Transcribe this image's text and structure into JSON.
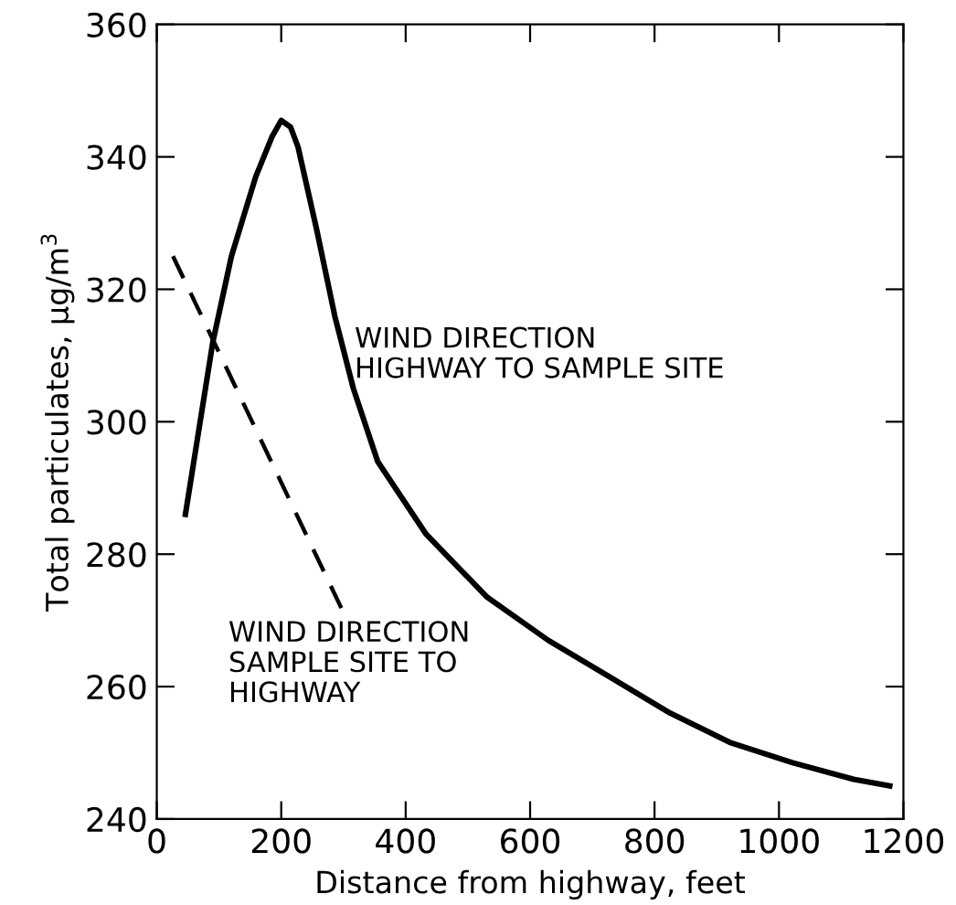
{
  "chart_data": {
    "type": "line",
    "xlabel": "Distance from highway, feet",
    "ylabel": "Total particulates, μg/m$^{3}$",
    "xlim": [
      0,
      1200
    ],
    "ylim": [
      240,
      360
    ],
    "xticks": [
      0,
      200,
      400,
      600,
      800,
      1000,
      1200
    ],
    "yticks": [
      240,
      260,
      280,
      300,
      320,
      340,
      360
    ],
    "grid": false,
    "legend": false,
    "marker": "none",
    "series": [
      {
        "name": "WIND DIRECTION\nHIGHWAY TO SAMPLE SITE",
        "color": "#000000",
        "line_style": "solid",
        "x": [
          46,
          90,
          120,
          159,
          185,
          200,
          215,
          227,
          257,
          286,
          316,
          355,
          433,
          531,
          629,
          727,
          825,
          923,
          1022,
          1120,
          1178
        ],
        "values": [
          286,
          312,
          325,
          337,
          343,
          345.5,
          344.5,
          341.5,
          329,
          316,
          305,
          294,
          283,
          273.5,
          267,
          261.5,
          256,
          251.5,
          248.5,
          246,
          245
        ]
      },
      {
        "name": "WIND DIRECTION\nSAMPLE SITE TO\nHIGHWAY",
        "color": "#000000",
        "line_style": "dashed",
        "x": [
          26,
          301
        ],
        "values": [
          325,
          271
        ]
      }
    ]
  }
}
